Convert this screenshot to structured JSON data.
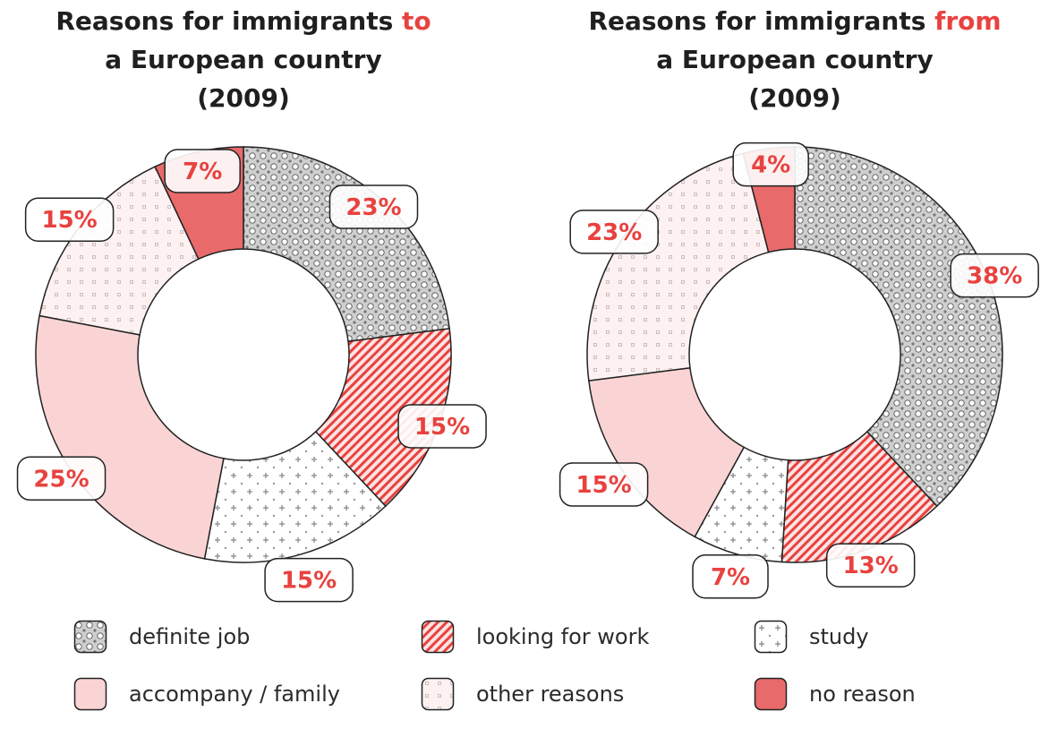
{
  "colors": {
    "accent": "#e8423f",
    "definite_job": "#cfcfcf",
    "looking_for_work": "#e8423f",
    "study": "#ffffff",
    "accompany_family": "#fad4d4",
    "other_reasons": "#fdf1f1",
    "no_reason": "#e86a6a",
    "outline": "#222222"
  },
  "legend": [
    {
      "key": "definite_job",
      "label": "definite job",
      "icon": "dotted-diamond-pattern"
    },
    {
      "key": "looking_for_work",
      "label": "looking for work",
      "icon": "diagonal-stripe-pattern"
    },
    {
      "key": "study",
      "label": "study",
      "icon": "plus-dot-pattern"
    },
    {
      "key": "accompany_family",
      "label": "accompany / family",
      "icon": "solid-pink"
    },
    {
      "key": "other_reasons",
      "label": "other reasons",
      "icon": "light-dot-pattern"
    },
    {
      "key": "no_reason",
      "label": "no reason",
      "icon": "solid-red"
    }
  ],
  "chart_data": [
    {
      "type": "pie",
      "variant": "donut",
      "title": {
        "before": "Reasons for immigrants ",
        "highlight": "to",
        "after": " a European country (2009)"
      },
      "title_lines": [
        [
          "Reasons for immigrants ",
          "to"
        ],
        [
          "a European country"
        ],
        [
          "(2009)"
        ]
      ],
      "categories": [
        "definite job",
        "looking for work",
        "study",
        "accompany / family",
        "other reasons",
        "no reason"
      ],
      "values": [
        23,
        15,
        15,
        25,
        15,
        7
      ],
      "labels": [
        "23%",
        "15%",
        "15%",
        "25%",
        "15%",
        "7%"
      ]
    },
    {
      "type": "pie",
      "variant": "donut",
      "title": {
        "before": "Reasons for immigrants ",
        "highlight": "from",
        "after": " a European country (2009)"
      },
      "title_lines": [
        [
          "Reasons for immigrants ",
          "from"
        ],
        [
          "a European country"
        ],
        [
          "(2009)"
        ]
      ],
      "categories": [
        "definite job",
        "looking for work",
        "study",
        "accompany / family",
        "other reasons",
        "no reason"
      ],
      "values": [
        38,
        13,
        7,
        15,
        23,
        4
      ],
      "labels": [
        "38%",
        "13%",
        "7%",
        "15%",
        "23%",
        "4%"
      ]
    }
  ]
}
